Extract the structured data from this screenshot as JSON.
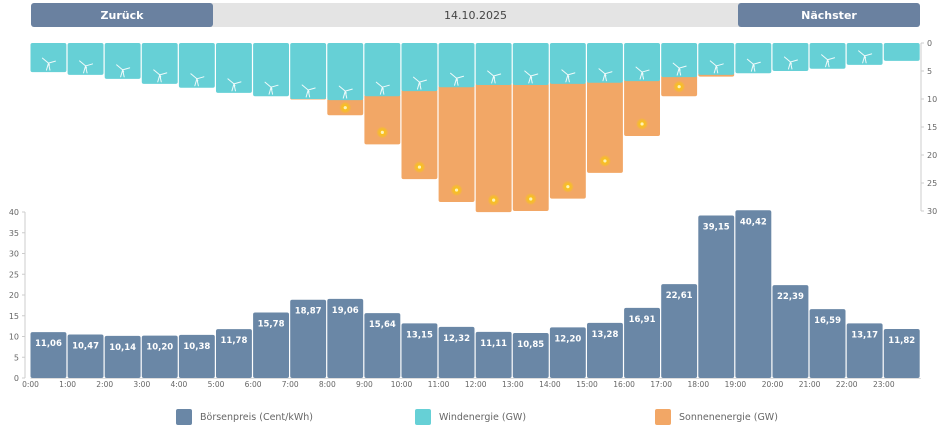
{
  "navigation": {
    "prev_label": "Zurück",
    "next_label": "Nächster",
    "date": "14.10.2025"
  },
  "colors": {
    "price": "#6a87a6",
    "wind": "#66d0d6",
    "solar": "#f2a766",
    "sun_dot": "#f8c21c",
    "nav_button": "#6a81a0",
    "nav_bg": "#e4e4e4"
  },
  "legend": [
    {
      "label": "Börsenpreis (Cent/kWh)",
      "series": "price"
    },
    {
      "label": "Windenergie (GW)",
      "series": "wind"
    },
    {
      "label": "Sonnenenergie (GW)",
      "series": "solar"
    }
  ],
  "chart_data": [
    {
      "type": "bar",
      "title": "",
      "description": "Stacked hanging bars: wind and solar generation per hour (GW), axis inverted, 0 at top",
      "categories": [
        "0:00",
        "1:00",
        "2:00",
        "3:00",
        "4:00",
        "5:00",
        "6:00",
        "7:00",
        "8:00",
        "9:00",
        "10:00",
        "11:00",
        "12:00",
        "13:00",
        "14:00",
        "15:00",
        "16:00",
        "17:00",
        "18:00",
        "19:00",
        "20:00",
        "21:00",
        "22:00",
        "23:00"
      ],
      "series": [
        {
          "name": "Windenergie (GW)",
          "key": "wind",
          "values": [
            5.2,
            5.7,
            6.4,
            7.3,
            8.0,
            8.9,
            9.5,
            10.0,
            10.2,
            9.5,
            8.6,
            7.9,
            7.5,
            7.5,
            7.3,
            7.1,
            6.8,
            6.1,
            5.7,
            5.4,
            5.0,
            4.6,
            3.9,
            3.2
          ]
        },
        {
          "name": "Sonnenenergie (GW)",
          "key": "solar",
          "values": [
            0,
            0,
            0,
            0,
            0,
            0,
            0,
            0.1,
            2.7,
            8.6,
            15.7,
            20.5,
            22.7,
            22.5,
            20.5,
            16.1,
            9.8,
            3.4,
            0.3,
            0,
            0,
            0,
            0,
            0
          ]
        }
      ],
      "yaxis": {
        "ticks": [
          0,
          5,
          10,
          15,
          20,
          25,
          30
        ],
        "range": [
          0,
          30
        ],
        "position": "right",
        "inverted": true
      },
      "grid": false
    },
    {
      "type": "bar",
      "title": "",
      "ylabel": "Börsenpreis (Cent/kWh)",
      "categories": [
        "0:00",
        "1:00",
        "2:00",
        "3:00",
        "4:00",
        "5:00",
        "6:00",
        "7:00",
        "8:00",
        "9:00",
        "10:00",
        "11:00",
        "12:00",
        "13:00",
        "14:00",
        "15:00",
        "16:00",
        "17:00",
        "18:00",
        "19:00",
        "20:00",
        "21:00",
        "22:00",
        "23:00"
      ],
      "values": [
        11.06,
        10.47,
        10.14,
        10.2,
        10.38,
        11.78,
        15.78,
        18.87,
        19.06,
        15.64,
        13.15,
        12.32,
        11.11,
        10.85,
        12.2,
        13.28,
        16.91,
        22.61,
        39.15,
        40.42,
        22.39,
        16.59,
        13.17,
        11.82
      ],
      "value_labels": [
        "11,06",
        "10,47",
        "10,14",
        "10,20",
        "10,38",
        "11,78",
        "15,78",
        "18,87",
        "19,06",
        "15,64",
        "13,15",
        "12,32",
        "11,11",
        "10,85",
        "12,20",
        "13,28",
        "16,91",
        "22,61",
        "39,15",
        "40,42",
        "22,39",
        "16,59",
        "13,17",
        "11,82"
      ],
      "xticks": [
        "0:00",
        "1:00",
        "2:00",
        "3:00",
        "4:00",
        "5:00",
        "6:00",
        "7:00",
        "8:00",
        "9:00",
        "10:00",
        "11:00",
        "12:00",
        "13:00",
        "14:00",
        "15:00",
        "16:00",
        "17:00",
        "18:00",
        "19:00",
        "20:00",
        "21:00",
        "22:00",
        "23:00"
      ],
      "yaxis": {
        "ticks": [
          0,
          5,
          10,
          15,
          20,
          25,
          30,
          35,
          40
        ],
        "range": [
          0,
          40
        ],
        "position": "left"
      },
      "grid": false,
      "legend": "bottom"
    }
  ]
}
